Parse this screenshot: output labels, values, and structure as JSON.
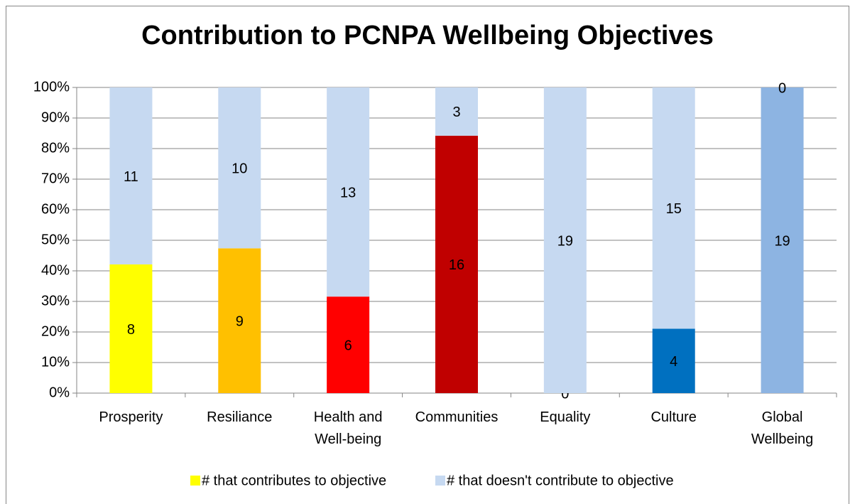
{
  "chart_data": {
    "type": "bar",
    "stacking": "percent",
    "title": "Contribution to PCNPA Wellbeing Objectives",
    "categories": [
      "Prosperity",
      "Resiliance",
      "Health and Well-being",
      "Communities",
      "Equality",
      "Culture",
      "Global Wellbeing"
    ],
    "series": [
      {
        "name": "# that contributes to objective",
        "color": "#FFFF00",
        "point_colors": [
          "#FFFF00",
          "#FFC000",
          "#FF0000",
          "#C00000",
          "#FFFF00",
          "#0070C0",
          "#8DB4E2"
        ],
        "values": [
          8,
          9,
          6,
          16,
          0,
          4,
          19
        ]
      },
      {
        "name": "# that doesn't contribute to objective",
        "color": "#C6D9F1",
        "values": [
          11,
          10,
          13,
          3,
          19,
          15,
          0
        ]
      }
    ],
    "ylim": [
      0,
      100
    ],
    "yticks": [
      {
        "value": 0,
        "label": "0%"
      },
      {
        "value": 10,
        "label": "10%"
      },
      {
        "value": 20,
        "label": "20%"
      },
      {
        "value": 30,
        "label": "30%"
      },
      {
        "value": 40,
        "label": "40%"
      },
      {
        "value": 50,
        "label": "50%"
      },
      {
        "value": 60,
        "label": "60%"
      },
      {
        "value": 70,
        "label": "70%"
      },
      {
        "value": 80,
        "label": "80%"
      },
      {
        "value": 90,
        "label": "90%"
      },
      {
        "value": 100,
        "label": "100%"
      }
    ],
    "grid": true,
    "legend": "bottom"
  }
}
